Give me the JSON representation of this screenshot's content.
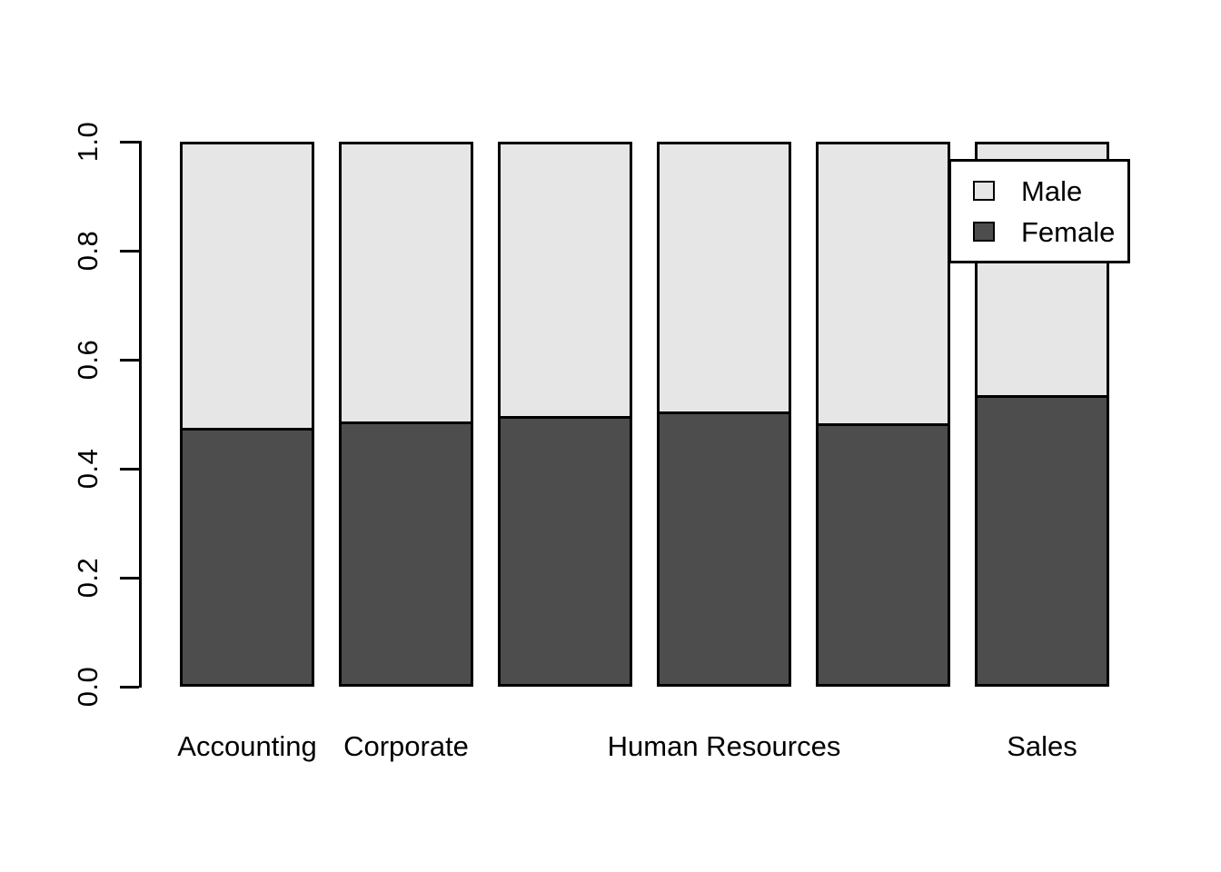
{
  "chart_data": {
    "type": "bar",
    "stacked": true,
    "proportional": true,
    "title": "",
    "xlabel": "",
    "ylabel": "",
    "ylim": [
      0,
      1
    ],
    "y_ticks": [
      "0.0",
      "0.2",
      "0.4",
      "0.6",
      "0.8",
      "1.0"
    ],
    "grid": false,
    "categories": [
      "Accounting",
      "Corporate",
      "",
      "Human Resources",
      "",
      "Sales"
    ],
    "series": [
      {
        "name": "Female",
        "color": "#4D4D4D",
        "position": "bottom",
        "values": [
          0.475,
          0.487,
          0.496,
          0.505,
          0.483,
          0.535
        ]
      },
      {
        "name": "Male",
        "color": "#E6E6E6",
        "position": "top",
        "values": [
          0.525,
          0.513,
          0.504,
          0.495,
          0.517,
          0.465
        ]
      }
    ],
    "legend": {
      "position": "topright",
      "border": true,
      "entries": [
        {
          "label": "Male",
          "color": "#E6E6E6"
        },
        {
          "label": "Female",
          "color": "#4D4D4D"
        }
      ]
    },
    "axis_color": "#000000",
    "background_color": "#FFFFFF"
  }
}
